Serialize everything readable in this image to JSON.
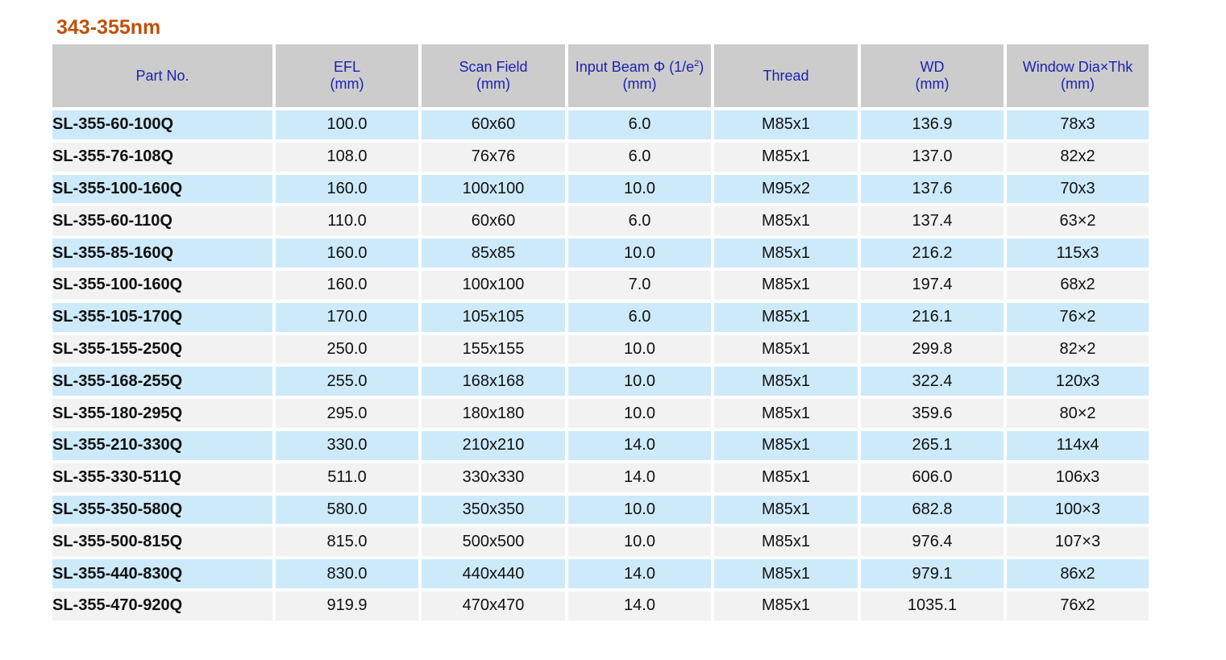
{
  "title": "343-355nm",
  "table": {
    "header": [
      {
        "label": "Part No."
      },
      {
        "label": "EFL",
        "unit": "(mm)"
      },
      {
        "label": "Scan Field",
        "unit": "(mm)"
      },
      {
        "label": "Input Beam Φ (1/e",
        "sup": "2",
        "label_end": ")",
        "unit": "(mm)"
      },
      {
        "label": "Thread"
      },
      {
        "label": "WD",
        "unit": "(mm)"
      },
      {
        "label": "Window Dia×Thk",
        "unit": "(mm)"
      }
    ],
    "rows": [
      [
        "SL-355-60-100Q",
        "100.0",
        "60x60",
        "6.0",
        "M85x1",
        "136.9",
        "78x3"
      ],
      [
        "SL-355-76-108Q",
        "108.0",
        "76x76",
        "6.0",
        "M85x1",
        "137.0",
        "82x2"
      ],
      [
        "SL-355-100-160Q",
        "160.0",
        "100x100",
        "10.0",
        "M95x2",
        "137.6",
        "70x3"
      ],
      [
        "SL-355-60-110Q",
        "110.0",
        "60x60",
        "6.0",
        "M85x1",
        "137.4",
        "63×2"
      ],
      [
        "SL-355-85-160Q",
        "160.0",
        "85x85",
        "10.0",
        "M85x1",
        "216.2",
        "115x3"
      ],
      [
        "SL-355-100-160Q",
        "160.0",
        "100x100",
        "7.0",
        "M85x1",
        "197.4",
        "68x2"
      ],
      [
        "SL-355-105-170Q",
        "170.0",
        "105x105",
        "6.0",
        "M85x1",
        "216.1",
        "76×2"
      ],
      [
        "SL-355-155-250Q",
        "250.0",
        "155x155",
        "10.0",
        "M85x1",
        "299.8",
        "82×2"
      ],
      [
        "SL-355-168-255Q",
        "255.0",
        "168x168",
        "10.0",
        "M85x1",
        "322.4",
        "120x3"
      ],
      [
        "SL-355-180-295Q",
        "295.0",
        "180x180",
        "10.0",
        "M85x1",
        "359.6",
        "80×2"
      ],
      [
        "SL-355-210-330Q",
        "330.0",
        "210x210",
        "14.0",
        "M85x1",
        "265.1",
        "114x4"
      ],
      [
        "SL-355-330-511Q",
        "511.0",
        "330x330",
        "14.0",
        "M85x1",
        "606.0",
        "106x3"
      ],
      [
        "SL-355-350-580Q",
        "580.0",
        "350x350",
        "10.0",
        "M85x1",
        "682.8",
        "100×3"
      ],
      [
        "SL-355-500-815Q",
        "815.0",
        "500x500",
        "10.0",
        "M85x1",
        "976.4",
        "107×3"
      ],
      [
        "SL-355-440-830Q",
        "830.0",
        "440x440",
        "14.0",
        "M85x1",
        "979.1",
        "86x2"
      ],
      [
        "SL-355-470-920Q",
        "919.9",
        "470x470",
        "14.0",
        "M85x1",
        "1035.1",
        "76x2"
      ]
    ]
  }
}
